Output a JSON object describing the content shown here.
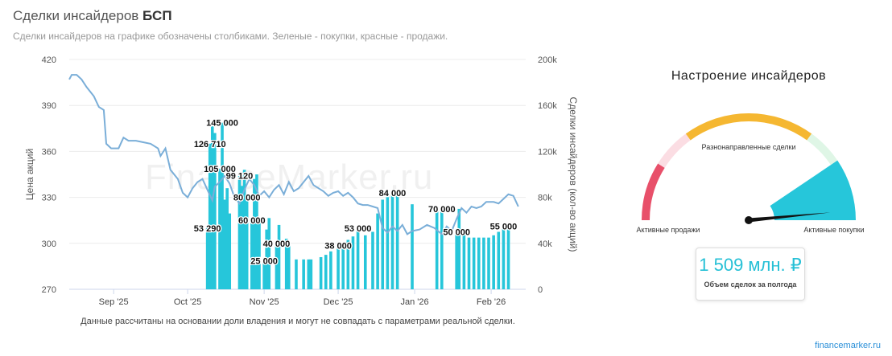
{
  "header": {
    "title_prefix": "Сделки инсайдеров ",
    "title_ticker": "БСП",
    "subtitle": "Сделки инсайдеров на графике обозначены столбиками. Зеленые - покупки, красные - продажи."
  },
  "footnote": "Данные рассчитаны на основании доли владения и могут не совпадать с параметрами реальной сделки.",
  "watermark": "FinanceMarker.ru",
  "brand": "financemarker.ru",
  "colors": {
    "bar": "#26c6da",
    "price_line": "#7aaed8",
    "sell": "#e8506a",
    "neutral": "#f5b731",
    "buy": "#26c6da"
  },
  "chart_data": {
    "type": "bar+line",
    "ylabel": "Цена акций",
    "y2label": "Сделки инсайдеров (кол-во акций)",
    "ylim": [
      270,
      420
    ],
    "yticks": [
      270,
      300,
      330,
      360,
      390,
      420
    ],
    "y2lim": [
      0,
      200000
    ],
    "y2ticks": [
      0,
      40000,
      80000,
      120000,
      160000,
      200000
    ],
    "y2ticklabels": [
      "0",
      "40k",
      "80k",
      "120k",
      "160k",
      "200k"
    ],
    "xlim": [
      "2025-08-14",
      "2026-02-15"
    ],
    "xticks": [
      {
        "date": "2025-09-01",
        "label": "Sep '25"
      },
      {
        "date": "2025-10-01",
        "label": "Oct '25"
      },
      {
        "date": "2025-11-01",
        "label": "Nov '25"
      },
      {
        "date": "2025-12-01",
        "label": "Dec '25"
      },
      {
        "date": "2026-01-01",
        "label": "Jan '26"
      },
      {
        "date": "2026-02-01",
        "label": "Feb '26"
      }
    ],
    "price_series": [
      [
        "2025-08-14",
        407
      ],
      [
        "2025-08-15",
        410
      ],
      [
        "2025-08-17",
        410
      ],
      [
        "2025-08-19",
        407
      ],
      [
        "2025-08-21",
        402
      ],
      [
        "2025-08-24",
        396
      ],
      [
        "2025-08-26",
        389
      ],
      [
        "2025-08-28",
        387
      ],
      [
        "2025-08-29",
        365
      ],
      [
        "2025-08-31",
        362
      ],
      [
        "2025-09-03",
        362
      ],
      [
        "2025-09-05",
        369
      ],
      [
        "2025-09-07",
        367
      ],
      [
        "2025-09-10",
        367
      ],
      [
        "2025-09-13",
        366
      ],
      [
        "2025-09-16",
        365
      ],
      [
        "2025-09-19",
        362
      ],
      [
        "2025-09-20",
        357
      ],
      [
        "2025-09-22",
        362
      ],
      [
        "2025-09-24",
        348
      ],
      [
        "2025-09-27",
        342
      ],
      [
        "2025-09-29",
        333
      ],
      [
        "2025-10-01",
        330
      ],
      [
        "2025-10-03",
        336
      ],
      [
        "2025-10-05",
        340
      ],
      [
        "2025-10-07",
        342
      ],
      [
        "2025-10-09",
        335
      ],
      [
        "2025-10-11",
        328
      ],
      [
        "2025-10-12",
        337
      ],
      [
        "2025-10-14",
        340
      ],
      [
        "2025-10-16",
        344
      ],
      [
        "2025-10-18",
        339
      ],
      [
        "2025-10-20",
        330
      ],
      [
        "2025-10-22",
        326
      ],
      [
        "2025-10-24",
        335
      ],
      [
        "2025-10-26",
        342
      ],
      [
        "2025-10-28",
        338
      ],
      [
        "2025-10-30",
        331
      ],
      [
        "2025-11-01",
        334
      ],
      [
        "2025-11-03",
        330
      ],
      [
        "2025-11-05",
        335
      ],
      [
        "2025-11-07",
        338
      ],
      [
        "2025-11-09",
        332
      ],
      [
        "2025-11-11",
        340
      ],
      [
        "2025-11-13",
        334
      ],
      [
        "2025-11-15",
        336
      ],
      [
        "2025-11-17",
        340
      ],
      [
        "2025-11-19",
        344
      ],
      [
        "2025-11-21",
        338
      ],
      [
        "2025-11-23",
        336
      ],
      [
        "2025-11-25",
        334
      ],
      [
        "2025-11-27",
        331
      ],
      [
        "2025-11-29",
        333
      ],
      [
        "2025-12-01",
        334
      ],
      [
        "2025-12-03",
        331
      ],
      [
        "2025-12-05",
        333
      ],
      [
        "2025-12-07",
        330
      ],
      [
        "2025-12-09",
        326
      ],
      [
        "2025-12-11",
        325
      ],
      [
        "2025-12-13",
        325
      ],
      [
        "2025-12-15",
        324
      ],
      [
        "2025-12-17",
        323
      ],
      [
        "2025-12-19",
        310
      ],
      [
        "2025-12-21",
        307
      ],
      [
        "2025-12-23",
        311
      ],
      [
        "2025-12-25",
        308
      ],
      [
        "2025-12-27",
        312
      ],
      [
        "2025-12-29",
        306
      ],
      [
        "2025-12-31",
        308
      ],
      [
        "2026-01-03",
        309
      ],
      [
        "2026-01-06",
        312
      ],
      [
        "2026-01-09",
        310
      ],
      [
        "2026-01-12",
        306
      ],
      [
        "2026-01-14",
        311
      ],
      [
        "2026-01-16",
        308
      ],
      [
        "2026-01-18",
        316
      ],
      [
        "2026-01-20",
        323
      ],
      [
        "2026-01-22",
        320
      ],
      [
        "2026-01-24",
        324
      ],
      [
        "2026-01-26",
        323
      ],
      [
        "2026-01-28",
        324
      ],
      [
        "2026-01-30",
        327
      ],
      [
        "2026-02-02",
        327
      ],
      [
        "2026-02-04",
        326
      ],
      [
        "2026-02-06",
        329
      ],
      [
        "2026-02-08",
        332
      ],
      [
        "2026-02-10",
        331
      ],
      [
        "2026-02-12",
        324
      ]
    ],
    "bars": [
      {
        "date": "2025-10-09",
        "value": 53290,
        "label": "53 290"
      },
      {
        "date": "2025-10-10",
        "value": 126710,
        "label": "126 710"
      },
      {
        "date": "2025-10-11",
        "value": 142000
      },
      {
        "date": "2025-10-12",
        "value": 136000
      },
      {
        "date": "2025-10-14",
        "value": 105000,
        "label": "105 000"
      },
      {
        "date": "2025-10-15",
        "value": 145000,
        "label": "145 000"
      },
      {
        "date": "2025-10-16",
        "value": 78000
      },
      {
        "date": "2025-10-17",
        "value": 88000
      },
      {
        "date": "2025-10-18",
        "value": 66000
      },
      {
        "date": "2025-10-22",
        "value": 99120,
        "label": "99 120"
      },
      {
        "date": "2025-10-23",
        "value": 90000
      },
      {
        "date": "2025-10-24",
        "value": 104000
      },
      {
        "date": "2025-10-25",
        "value": 80000,
        "label": "80 000"
      },
      {
        "date": "2025-10-27",
        "value": 60000,
        "label": "60 000"
      },
      {
        "date": "2025-10-28",
        "value": 96000
      },
      {
        "date": "2025-10-29",
        "value": 100000
      },
      {
        "date": "2025-10-30",
        "value": 62000
      },
      {
        "date": "2025-11-01",
        "value": 25000,
        "label": "25 000"
      },
      {
        "date": "2025-11-02",
        "value": 52000
      },
      {
        "date": "2025-11-03",
        "value": 62000
      },
      {
        "date": "2025-11-06",
        "value": 40000,
        "label": "40 000"
      },
      {
        "date": "2025-11-07",
        "value": 56000
      },
      {
        "date": "2025-11-10",
        "value": 44000
      },
      {
        "date": "2025-11-11",
        "value": 40000
      },
      {
        "date": "2025-11-14",
        "value": 26000
      },
      {
        "date": "2025-11-17",
        "value": 26000
      },
      {
        "date": "2025-11-19",
        "value": 26000
      },
      {
        "date": "2025-11-20",
        "value": 26000
      },
      {
        "date": "2025-11-24",
        "value": 28000
      },
      {
        "date": "2025-11-26",
        "value": 30000
      },
      {
        "date": "2025-11-28",
        "value": 33000
      },
      {
        "date": "2025-12-01",
        "value": 38000,
        "label": "38 000"
      },
      {
        "date": "2025-12-03",
        "value": 40000
      },
      {
        "date": "2025-12-05",
        "value": 43000
      },
      {
        "date": "2025-12-07",
        "value": 46000
      },
      {
        "date": "2025-12-09",
        "value": 53000,
        "label": "53 000"
      },
      {
        "date": "2025-12-12",
        "value": 47000
      },
      {
        "date": "2025-12-15",
        "value": 50000
      },
      {
        "date": "2025-12-17",
        "value": 66000
      },
      {
        "date": "2025-12-19",
        "value": 78000
      },
      {
        "date": "2025-12-21",
        "value": 82000
      },
      {
        "date": "2025-12-23",
        "value": 84000,
        "label": "84 000"
      },
      {
        "date": "2025-12-25",
        "value": 82000
      },
      {
        "date": "2025-12-31",
        "value": 74000
      },
      {
        "date": "2026-01-10",
        "value": 72000
      },
      {
        "date": "2026-01-12",
        "value": 70000,
        "label": "70 000"
      },
      {
        "date": "2026-01-18",
        "value": 50000,
        "label": "50 000"
      },
      {
        "date": "2026-01-19",
        "value": 70000
      },
      {
        "date": "2026-01-21",
        "value": 50000
      },
      {
        "date": "2026-01-23",
        "value": 45000
      },
      {
        "date": "2026-01-25",
        "value": 45000
      },
      {
        "date": "2026-01-27",
        "value": 45000
      },
      {
        "date": "2026-01-29",
        "value": 45000
      },
      {
        "date": "2026-01-31",
        "value": 45000
      },
      {
        "date": "2026-02-02",
        "value": 47000
      },
      {
        "date": "2026-02-04",
        "value": 50000
      },
      {
        "date": "2026-02-06",
        "value": 55000,
        "label": "55 000"
      },
      {
        "date": "2026-02-08",
        "value": 55000
      }
    ]
  },
  "gauge": {
    "title": "Настроение инсайдеров",
    "label_sell": "Активные продажи",
    "label_neutral": "Разнонаправленные сделки",
    "label_buy": "Активные покупки",
    "needle_fraction": 0.97
  },
  "volume": {
    "value": "1 509 млн. ₽",
    "label": "Объем сделок за полгода"
  }
}
